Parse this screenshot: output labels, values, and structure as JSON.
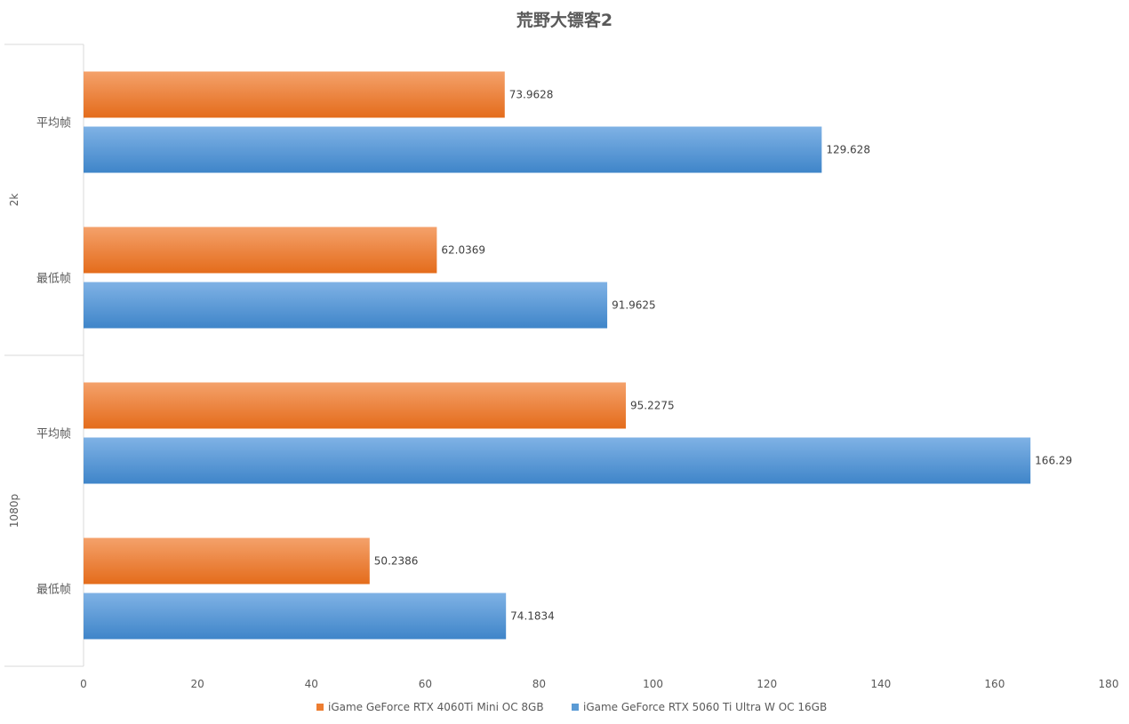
{
  "chart_data": {
    "type": "bar",
    "orientation": "horizontal",
    "title": "荒野大镖客2",
    "groups": [
      {
        "name": "2k",
        "categories": [
          "平均帧",
          "最低帧"
        ]
      },
      {
        "name": "1080p",
        "categories": [
          "平均帧",
          "最低帧"
        ]
      }
    ],
    "series": [
      {
        "name": "iGame GeForce RTX 4060Ti Mini OC 8GB",
        "color": "#ed7d31",
        "values": [
          73.9628,
          62.0369,
          95.2275,
          50.2386
        ]
      },
      {
        "name": "iGame GeForce RTX 5060 Ti Ultra W OC 16GB",
        "color": "#5b9bd5",
        "values": [
          129.628,
          91.9625,
          166.29,
          74.1834
        ]
      }
    ],
    "xlim": [
      0,
      180
    ],
    "xticks": [
      0,
      20,
      40,
      60,
      80,
      100,
      120,
      140,
      160,
      180
    ],
    "legend_position": "bottom",
    "grid": false
  }
}
